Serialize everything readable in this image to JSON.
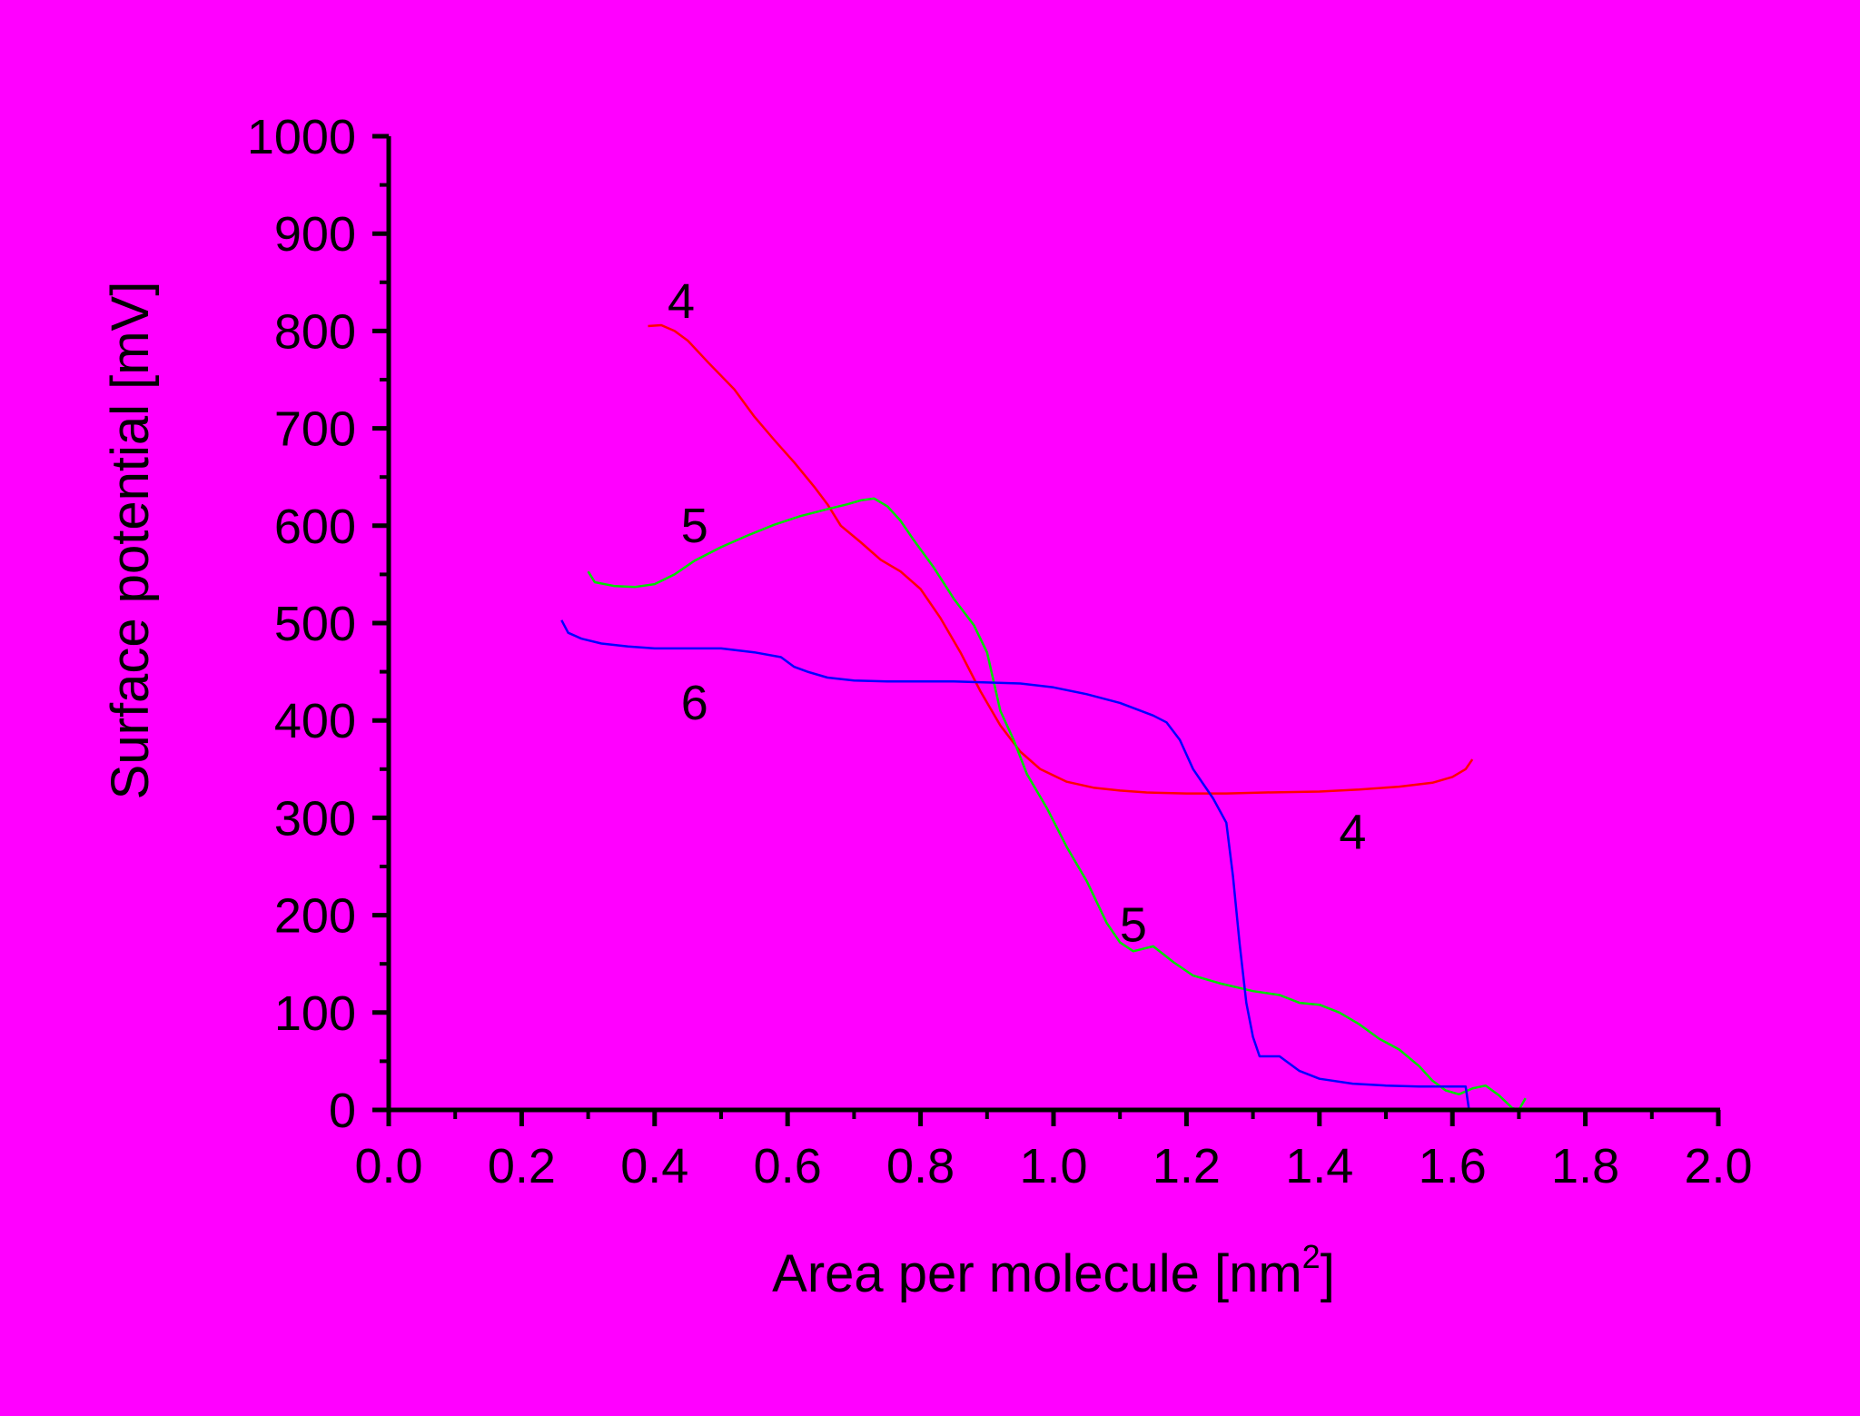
{
  "chart_data": {
    "type": "line",
    "title": "",
    "xlabel": "Area per molecule [nm",
    "xlabel_sup": "2",
    "xlabel_end": "]",
    "ylabel": "Surface potential [mV]",
    "xlim": [
      0.0,
      2.0
    ],
    "ylim": [
      0,
      1000
    ],
    "xticks": [
      "0.0",
      "0.2",
      "0.4",
      "0.6",
      "0.8",
      "1.0",
      "1.2",
      "1.4",
      "1.6",
      "1.8",
      "2.0"
    ],
    "yticks": [
      "0",
      "100",
      "200",
      "300",
      "400",
      "500",
      "600",
      "700",
      "800",
      "900",
      "1000"
    ],
    "grid": false,
    "legend": "none",
    "series": [
      {
        "name": "4",
        "color": "#FF0000",
        "points": [
          [
            0.39,
            805
          ],
          [
            0.41,
            806
          ],
          [
            0.43,
            800
          ],
          [
            0.45,
            790
          ],
          [
            0.48,
            768
          ],
          [
            0.52,
            740
          ],
          [
            0.55,
            712
          ],
          [
            0.58,
            688
          ],
          [
            0.61,
            665
          ],
          [
            0.64,
            640
          ],
          [
            0.66,
            622
          ],
          [
            0.68,
            600
          ],
          [
            0.71,
            583
          ],
          [
            0.74,
            565
          ],
          [
            0.77,
            553
          ],
          [
            0.8,
            535
          ],
          [
            0.83,
            505
          ],
          [
            0.86,
            470
          ],
          [
            0.89,
            430
          ],
          [
            0.92,
            395
          ],
          [
            0.95,
            368
          ],
          [
            0.98,
            350
          ],
          [
            1.02,
            337
          ],
          [
            1.06,
            331
          ],
          [
            1.1,
            328
          ],
          [
            1.14,
            326
          ],
          [
            1.2,
            325
          ],
          [
            1.26,
            325
          ],
          [
            1.32,
            326
          ],
          [
            1.4,
            327
          ],
          [
            1.46,
            329
          ],
          [
            1.52,
            332
          ],
          [
            1.57,
            336
          ],
          [
            1.6,
            342
          ],
          [
            1.62,
            350
          ],
          [
            1.63,
            360
          ]
        ]
      },
      {
        "name": "5",
        "color": "#00E000",
        "points": [
          [
            0.3,
            553
          ],
          [
            0.31,
            542
          ],
          [
            0.34,
            538
          ],
          [
            0.37,
            537
          ],
          [
            0.4,
            540
          ],
          [
            0.43,
            550
          ],
          [
            0.46,
            564
          ],
          [
            0.5,
            578
          ],
          [
            0.54,
            590
          ],
          [
            0.58,
            601
          ],
          [
            0.62,
            610
          ],
          [
            0.66,
            617
          ],
          [
            0.69,
            622
          ],
          [
            0.71,
            626
          ],
          [
            0.73,
            628
          ],
          [
            0.75,
            620
          ],
          [
            0.77,
            605
          ],
          [
            0.79,
            585
          ],
          [
            0.82,
            557
          ],
          [
            0.85,
            525
          ],
          [
            0.88,
            498
          ],
          [
            0.9,
            470
          ],
          [
            0.91,
            440
          ],
          [
            0.92,
            410
          ],
          [
            0.94,
            380
          ],
          [
            0.96,
            345
          ],
          [
            0.99,
            310
          ],
          [
            1.02,
            270
          ],
          [
            1.05,
            235
          ],
          [
            1.08,
            192
          ],
          [
            1.1,
            172
          ],
          [
            1.12,
            163
          ],
          [
            1.15,
            168
          ],
          [
            1.18,
            152
          ],
          [
            1.21,
            138
          ],
          [
            1.25,
            130
          ],
          [
            1.3,
            122
          ],
          [
            1.34,
            118
          ],
          [
            1.37,
            110
          ],
          [
            1.4,
            108
          ],
          [
            1.43,
            100
          ],
          [
            1.46,
            88
          ],
          [
            1.49,
            73
          ],
          [
            1.52,
            62
          ],
          [
            1.55,
            45
          ],
          [
            1.57,
            30
          ],
          [
            1.59,
            20
          ],
          [
            1.61,
            16
          ],
          [
            1.63,
            22
          ],
          [
            1.65,
            25
          ],
          [
            1.67,
            15
          ],
          [
            1.69,
            2
          ],
          [
            1.7,
            0
          ],
          [
            1.71,
            12
          ]
        ]
      },
      {
        "name": "6",
        "color": "#0000FF",
        "points": [
          [
            0.26,
            503
          ],
          [
            0.27,
            490
          ],
          [
            0.29,
            484
          ],
          [
            0.32,
            479
          ],
          [
            0.36,
            476
          ],
          [
            0.4,
            474
          ],
          [
            0.45,
            474
          ],
          [
            0.5,
            474
          ],
          [
            0.55,
            470
          ],
          [
            0.59,
            465
          ],
          [
            0.61,
            455
          ],
          [
            0.63,
            450
          ],
          [
            0.66,
            444
          ],
          [
            0.7,
            441
          ],
          [
            0.75,
            440
          ],
          [
            0.8,
            440
          ],
          [
            0.85,
            440
          ],
          [
            0.9,
            439
          ],
          [
            0.95,
            438
          ],
          [
            1.0,
            434
          ],
          [
            1.05,
            427
          ],
          [
            1.1,
            418
          ],
          [
            1.15,
            405
          ],
          [
            1.17,
            398
          ],
          [
            1.19,
            380
          ],
          [
            1.21,
            350
          ],
          [
            1.24,
            320
          ],
          [
            1.26,
            295
          ],
          [
            1.27,
            240
          ],
          [
            1.28,
            170
          ],
          [
            1.29,
            110
          ],
          [
            1.3,
            75
          ],
          [
            1.31,
            55
          ],
          [
            1.34,
            55
          ],
          [
            1.37,
            40
          ],
          [
            1.4,
            32
          ],
          [
            1.45,
            27
          ],
          [
            1.5,
            25
          ],
          [
            1.55,
            24
          ],
          [
            1.6,
            24
          ],
          [
            1.62,
            24
          ],
          [
            1.625,
            0
          ]
        ]
      }
    ],
    "annotations": [
      {
        "text": "4",
        "x": 0.44,
        "y": 830
      },
      {
        "text": "4",
        "x": 1.45,
        "y": 285
      },
      {
        "text": "5",
        "x": 0.46,
        "y": 600
      },
      {
        "text": "5",
        "x": 1.12,
        "y": 190
      },
      {
        "text": "6",
        "x": 0.46,
        "y": 418
      }
    ]
  }
}
